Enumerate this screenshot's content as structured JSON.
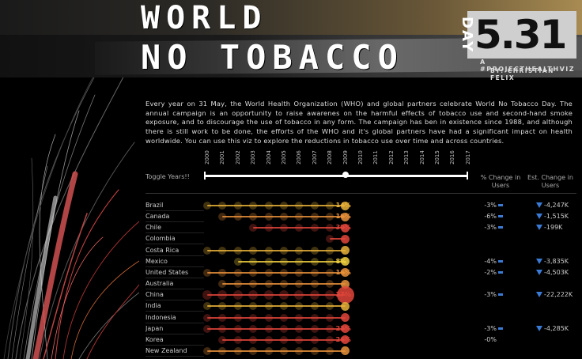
{
  "header": {
    "title_line1": "WORLD",
    "title_line2": "NO TOBACCO",
    "day_label": "DAY",
    "date": "5.31",
    "subtitle1": "A #PROJECTHEALTHVIZ",
    "subtitle2": "BY: CHRISTIAN FELIX"
  },
  "description": "Every year on 31 May, the World Health Organization (WHO) and global partners celebrate World No Tobacco Day. The annual campaign is an opportunity to raise awarenes on the harmful effects of tobacco use and second-hand smoke exposure, and to discourage the use of tobacco in any form. The campaign has ben in existence since 1988, and although there is still work to be done, the efforts of the WHO and it's global partners have had a significant impact on health worldwide. You can use this viz to explore the reductions in tobacco use over time and across countries.",
  "controls": {
    "toggle_label": "Toggle Years!!",
    "years": [
      "2000",
      "2001",
      "2002",
      "2003",
      "2004",
      "2005",
      "2006",
      "2007",
      "2008",
      "2009",
      "2010",
      "2011",
      "2012",
      "2013",
      "2014",
      "2015",
      "2016",
      "2017"
    ],
    "selected_year": "2009"
  },
  "columns": {
    "pct_change": "% Change in Users",
    "est_change": "Est. Change in Users"
  },
  "colors": {
    "accent_gold": "#e8b23a",
    "accent_orange": "#e8903a",
    "accent_red": "#e0453a",
    "decrease_blue": "#3a7bd5"
  },
  "rows": [
    {
      "country": "Brazil",
      "label": "14%",
      "color": "#e8b23a",
      "start_year": 2000,
      "pct": "-3%",
      "pct_bar": true,
      "arrow": true,
      "est": "-4,247K"
    },
    {
      "country": "Canada",
      "label": "16%",
      "color": "#e8903a",
      "start_year": 2001,
      "pct": "-6%",
      "pct_bar": true,
      "arrow": true,
      "est": "-1,515K"
    },
    {
      "country": "Chile",
      "label": "30%",
      "color": "#e0453a",
      "start_year": 2003,
      "pct": "-3%",
      "pct_bar": true,
      "arrow": true,
      "est": "-199K"
    },
    {
      "country": "Colombia",
      "label": "",
      "color": "#e0453a",
      "start_year": 2008,
      "pct": "",
      "pct_bar": false,
      "arrow": false,
      "est": ""
    },
    {
      "country": "Costa Rica",
      "label": "",
      "color": "#e8b23a",
      "start_year": 2000,
      "pct": "",
      "pct_bar": false,
      "arrow": false,
      "est": ""
    },
    {
      "country": "Mexico",
      "label": "8%",
      "color": "#f0d040",
      "start_year": 2002,
      "pct": "-4%",
      "pct_bar": true,
      "arrow": true,
      "est": "-3,835K"
    },
    {
      "country": "United States",
      "label": "16%",
      "color": "#e8903a",
      "start_year": 2000,
      "pct": "-2%",
      "pct_bar": true,
      "arrow": true,
      "est": "-4,503K"
    },
    {
      "country": "Australia",
      "label": "",
      "color": "#e8903a",
      "start_year": 2001,
      "pct": "",
      "pct_bar": false,
      "arrow": false,
      "est": ""
    },
    {
      "country": "China",
      "label": "27%",
      "color": "#e0453a",
      "start_year": 2000,
      "pct": "-3%",
      "pct_bar": true,
      "arrow": true,
      "est": "-22,222K"
    },
    {
      "country": "India",
      "label": "",
      "color": "#e8b23a",
      "start_year": 2000,
      "pct": "",
      "pct_bar": false,
      "arrow": false,
      "est": ""
    },
    {
      "country": "Indonesia",
      "label": "",
      "color": "#e0453a",
      "start_year": 2000,
      "pct": "",
      "pct_bar": false,
      "arrow": false,
      "est": ""
    },
    {
      "country": "Japan",
      "label": "23%",
      "color": "#e0453a",
      "start_year": 2000,
      "pct": "-3%",
      "pct_bar": true,
      "arrow": true,
      "est": "-4,285K"
    },
    {
      "country": "Korea",
      "label": "26%",
      "color": "#e0453a",
      "start_year": 2001,
      "pct": "-0%",
      "pct_bar": false,
      "arrow": false,
      "est": ""
    },
    {
      "country": "New Zealand",
      "label": "",
      "color": "#e8903a",
      "start_year": 2000,
      "pct": "",
      "pct_bar": false,
      "arrow": false,
      "est": ""
    }
  ]
}
